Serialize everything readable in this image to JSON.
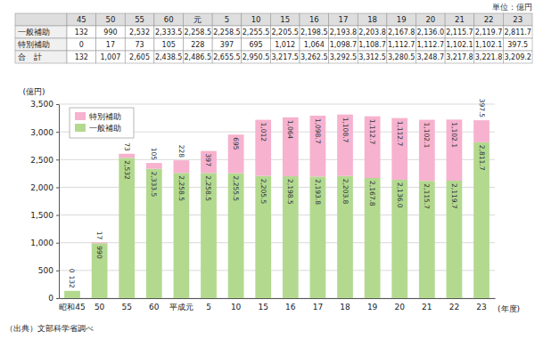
{
  "chart_data": {
    "type": "bar",
    "stacked": true,
    "categories": [
      "昭和45",
      "50",
      "55",
      "60",
      "平成元",
      "5",
      "10",
      "15",
      "16",
      "17",
      "18",
      "19",
      "20",
      "21",
      "22",
      "23"
    ],
    "x_label": "(年度)",
    "y_label": "(億円)",
    "ylim": [
      0,
      3500
    ],
    "yticks": [
      0,
      500,
      {
        "value": 1000,
        "label": "1,000"
      },
      {
        "value": 1500,
        "label": "1,500"
      },
      {
        "value": 2000,
        "label": "2,000"
      },
      {
        "value": 2500,
        "label": "2,500"
      },
      {
        "value": 3000,
        "label": "3,000"
      },
      {
        "value": 3500,
        "label": "3,500"
      }
    ],
    "grid": true,
    "legend": "upper left",
    "data_labels": true,
    "series": [
      {
        "name": "一般補助",
        "color": "#b3d98f",
        "values": [
          132,
          990,
          2532,
          2333.5,
          2258.5,
          2258.5,
          2255.5,
          2205.5,
          2198.5,
          2193.8,
          2203.8,
          2167.8,
          2136.0,
          2115.7,
          2119.7,
          2811.7
        ],
        "value_labels": [
          "132",
          "990",
          "2,532",
          "2,333.5",
          "2,258.5",
          "2,258.5",
          "2,255.5",
          "2,205.5",
          "2,198.5",
          "2,193.8",
          "2,203.8",
          "2,167.8",
          "2,136.0",
          "2,115.7",
          "2,119.7",
          "2,811.7"
        ]
      },
      {
        "name": "特別補助",
        "color": "#f6b2ce",
        "values": [
          0,
          17,
          73,
          105,
          228,
          397,
          695,
          1012,
          1064,
          1098.7,
          1108.7,
          1112.7,
          1112.7,
          1102.1,
          1102.1,
          397.5
        ],
        "value_labels": [
          "0",
          "17",
          "73",
          "105",
          "228",
          "397",
          "695",
          "1,012",
          "1,064",
          "1,098.7",
          "1,108.7",
          "1,112.7",
          "1,112.7",
          "1,102.1",
          "1,102.1",
          "397.5"
        ]
      }
    ],
    "source": "（出典）文部科学省調べ"
  },
  "table": {
    "unit": "単位：億円",
    "header": [
      "45",
      "50",
      "55",
      "60",
      "元",
      "5",
      "10",
      "15",
      "16",
      "17",
      "18",
      "19",
      "20",
      "21",
      "22",
      "23"
    ],
    "rows": [
      {
        "label": "一般補助",
        "cells": [
          "132",
          "990",
          "2,532",
          "2,333.5",
          "2,258.5",
          "2,258.5",
          "2,255.5",
          "2,205.5",
          "2,198.5",
          "2,193.8",
          "2,203.8",
          "2,167.8",
          "2,136.0",
          "2,115.7",
          "2,119.7",
          "2,811.7"
        ]
      },
      {
        "label": "特別補助",
        "cells": [
          "0",
          "17",
          "73",
          "105",
          "228",
          "397",
          "695",
          "1,012",
          "1,064",
          "1,098.7",
          "1,108.7",
          "1,112.7",
          "1,112.7",
          "1,102.1",
          "1,102.1",
          "397.5"
        ]
      },
      {
        "label": "合　計",
        "cells": [
          "132",
          "1,007",
          "2,605",
          "2,438.5",
          "2,486.5",
          "2,655.5",
          "2,950.5",
          "3,217.5",
          "3,262.5",
          "3,292.5",
          "3,312.5",
          "3,280.5",
          "3,248.7",
          "3,217.8",
          "3,221.8",
          "3,209.2"
        ]
      }
    ]
  }
}
